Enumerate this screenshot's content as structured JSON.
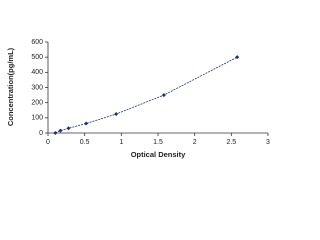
{
  "chart_data": {
    "type": "line",
    "x_label": "Optical Density",
    "y_label": "Concentration(pg/mL)",
    "x": [
      0.1,
      0.17,
      0.28,
      0.52,
      0.93,
      1.58,
      2.58
    ],
    "values": [
      0,
      15.6,
      31.2,
      62.5,
      125,
      250,
      500
    ],
    "color": "#1f2f6e",
    "xlim": [
      0,
      3
    ],
    "xticks": [
      0,
      0.5,
      1,
      1.5,
      2,
      2.5,
      3
    ],
    "ylim": [
      0,
      600
    ],
    "yticks": [
      0,
      100,
      200,
      300,
      400,
      500,
      600
    ]
  }
}
